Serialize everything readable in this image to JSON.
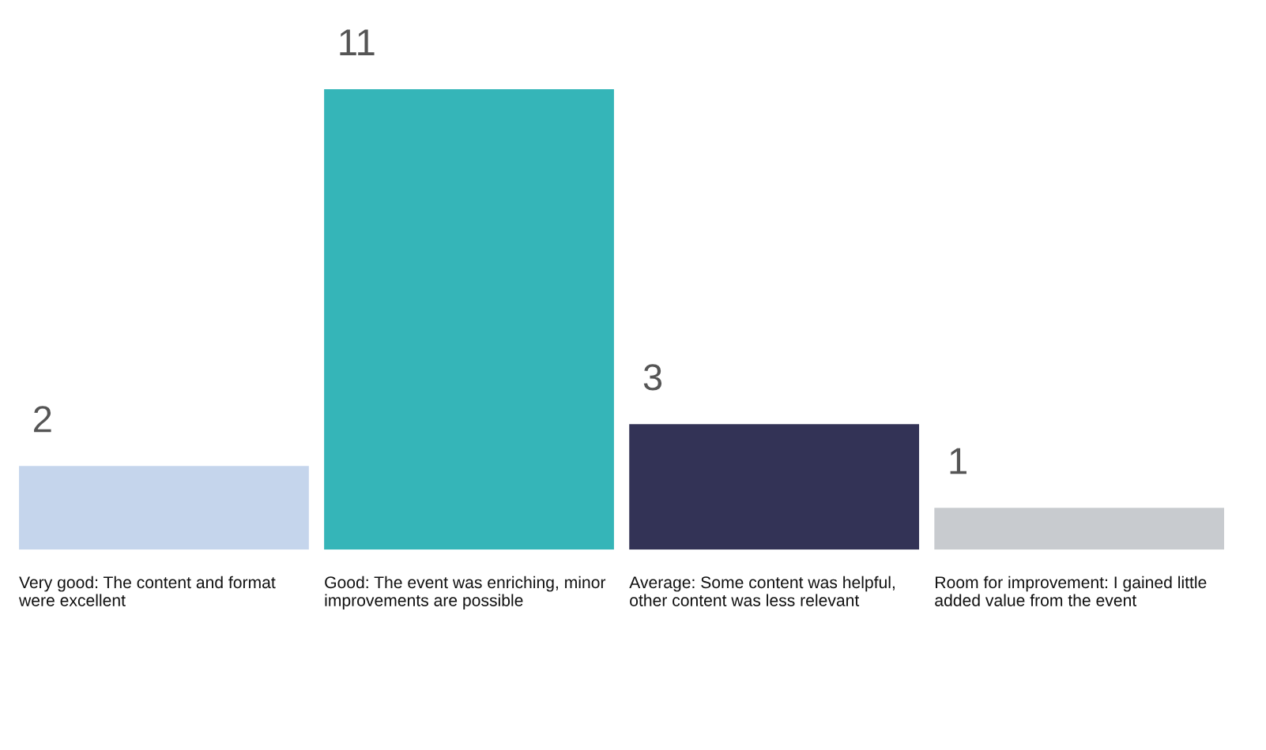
{
  "chart_data": {
    "type": "bar",
    "categories": [
      "Very good: The content and format\nwere excellent",
      "Good: The event was enriching, minor\nimprovements are possible",
      "Average: Some content was helpful,\nother content was less relevant",
      "Room for improvement: I gained little\nadded value from the event"
    ],
    "values": [
      2,
      11,
      3,
      1
    ],
    "colors": [
      "#c5d5ec",
      "#35b5b8",
      "#333356",
      "#c8cbcf"
    ],
    "data_labels": true
  }
}
